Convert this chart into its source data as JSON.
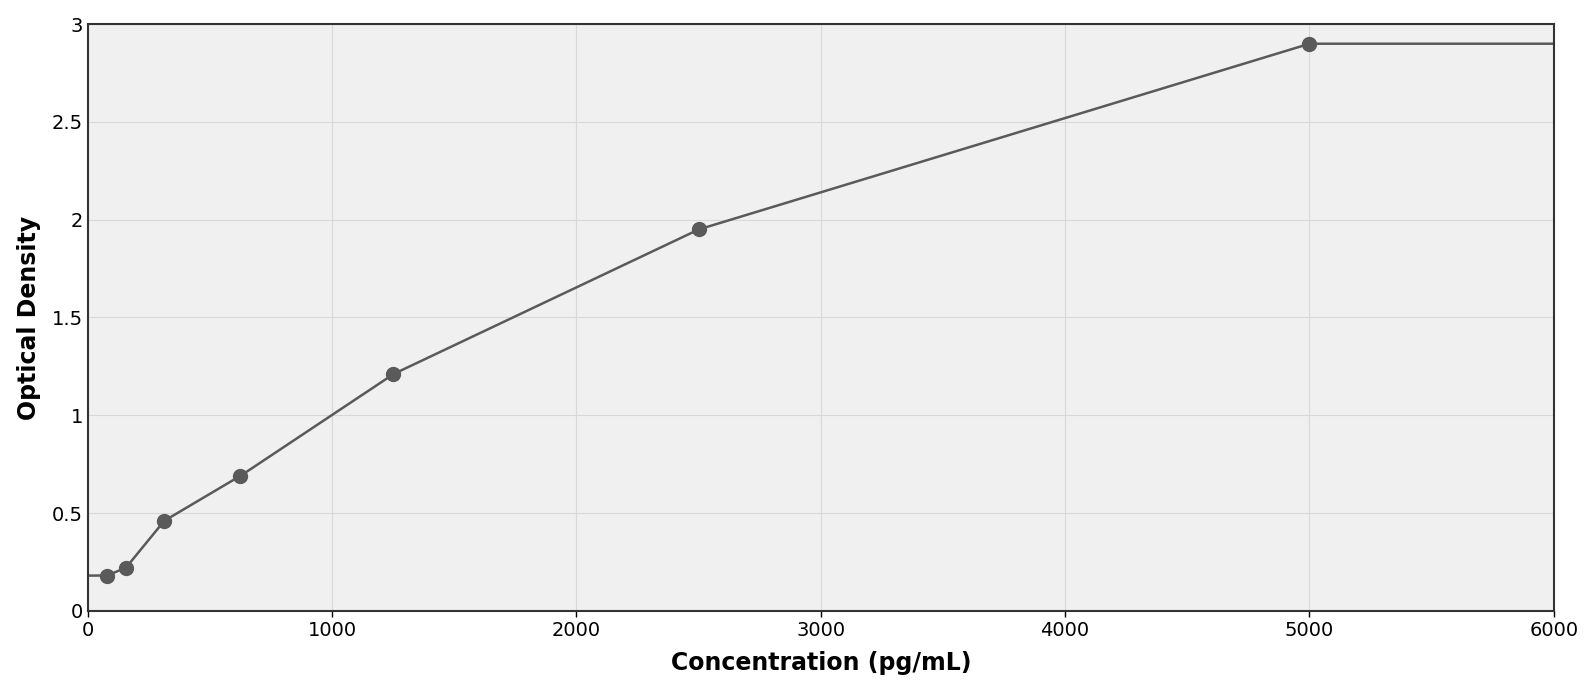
{
  "x_data": [
    78,
    156,
    313,
    625,
    1250,
    2500,
    5000
  ],
  "y_data": [
    0.18,
    0.22,
    0.46,
    0.69,
    1.21,
    1.95,
    2.9
  ],
  "xlabel": "Concentration (pg/mL)",
  "ylabel": "Optical Density",
  "xlim": [
    0,
    6000
  ],
  "ylim": [
    0,
    3.0
  ],
  "xticks": [
    0,
    1000,
    2000,
    3000,
    4000,
    5000,
    6000
  ],
  "yticks": [
    0,
    0.5,
    1.0,
    1.5,
    2.0,
    2.5,
    3.0
  ],
  "marker_color": "#5a5a5a",
  "line_color": "#5a5a5a",
  "background_color": "#ffffff",
  "plot_bg_color": "#f0f0f0",
  "grid_color": "#d8d8d8",
  "marker_size": 10,
  "line_width": 1.8,
  "xlabel_fontsize": 17,
  "ylabel_fontsize": 17,
  "tick_fontsize": 14,
  "xlabel_fontweight": "bold",
  "ylabel_fontweight": "bold",
  "spine_color": "#333333",
  "spine_linewidth": 1.5
}
